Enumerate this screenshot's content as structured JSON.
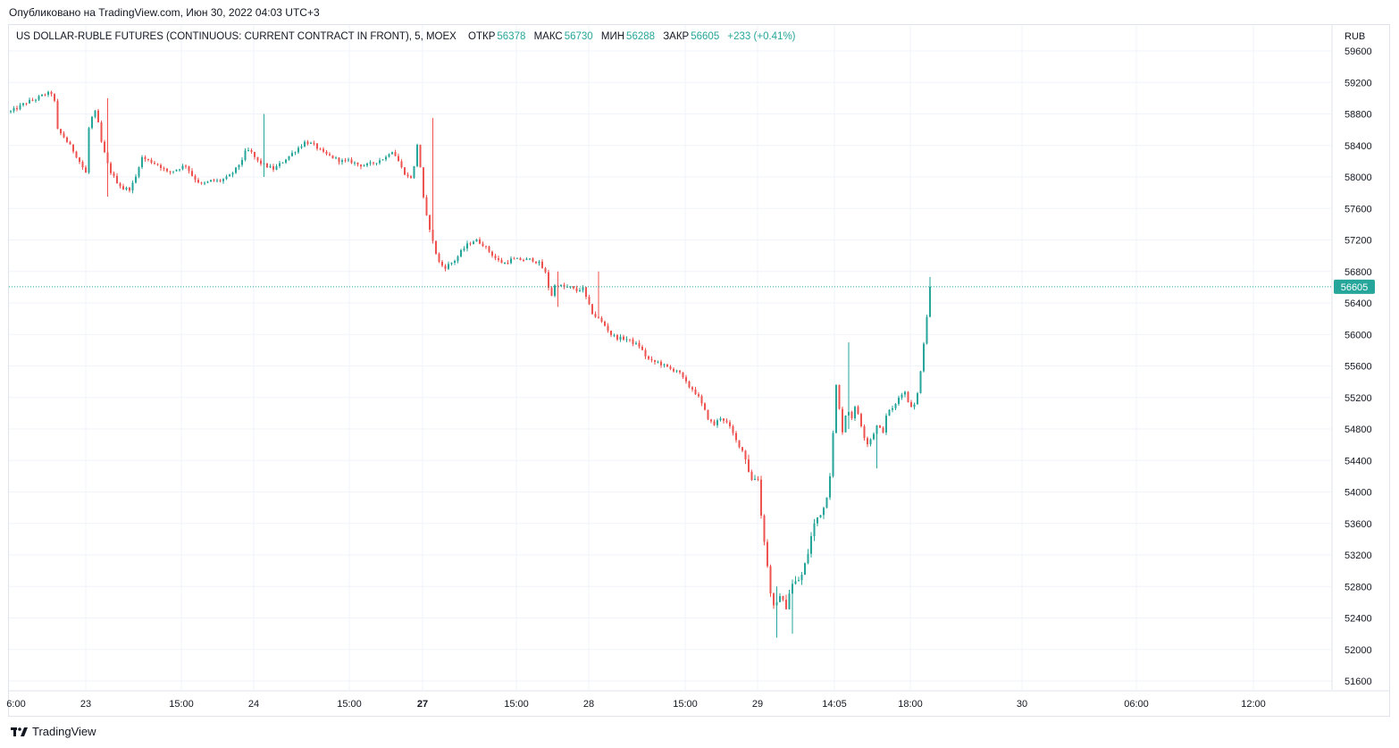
{
  "header": {
    "published": "Опубликовано на TradingView.com, Июн 30, 2022 04:03 UTC+3"
  },
  "legend": {
    "symbol": "US DOLLAR-RUBLE FUTURES (CONTINUOUS: CURRENT CONTRACT IN FRONT), 5, MOEX",
    "open_label": "ОТКР",
    "open": "56378",
    "high_label": "МАКС",
    "high": "56730",
    "low_label": "МИН",
    "low": "56288",
    "close_label": "ЗАКР",
    "close": "56605",
    "change": "+233 (+0.41%)"
  },
  "footer": {
    "brand": "TradingView"
  },
  "colors": {
    "up": "#26a69a",
    "down": "#ef5350",
    "grid": "#f0f3fa",
    "text": "#131722"
  },
  "chart_data": {
    "type": "candlestick",
    "currency": "RUB",
    "ylim": [
      51400,
      59700
    ],
    "y_ticks": [
      59600,
      59200,
      58800,
      58400,
      58000,
      57600,
      57200,
      56800,
      56400,
      56000,
      55600,
      55200,
      54800,
      54400,
      54000,
      53600,
      53200,
      52800,
      52400,
      52000,
      51600
    ],
    "x_ticks": [
      {
        "label": "6:00",
        "bold": false
      },
      {
        "label": "23",
        "bold": false
      },
      {
        "label": "15:00",
        "bold": false
      },
      {
        "label": "24",
        "bold": false
      },
      {
        "label": "15:00",
        "bold": false
      },
      {
        "label": "27",
        "bold": true
      },
      {
        "label": "15:00",
        "bold": false
      },
      {
        "label": "28",
        "bold": false
      },
      {
        "label": "15:00",
        "bold": false
      },
      {
        "label": "29",
        "bold": false
      },
      {
        "label": "14:05",
        "bold": false
      },
      {
        "label": "18:00",
        "bold": false
      },
      {
        "label": "30",
        "bold": false
      },
      {
        "label": "06:00",
        "bold": false
      },
      {
        "label": "12:00",
        "bold": false
      }
    ],
    "last_price": 56605,
    "path": [
      [
        0,
        58830
      ],
      [
        8,
        58880
      ],
      [
        18,
        58950
      ],
      [
        28,
        58990
      ],
      [
        38,
        59050
      ],
      [
        48,
        59070
      ],
      [
        52,
        58600
      ],
      [
        60,
        58500
      ],
      [
        72,
        58300
      ],
      [
        84,
        58050
      ],
      [
        88,
        58700
      ],
      [
        96,
        58850
      ],
      [
        100,
        58500
      ],
      [
        110,
        58100
      ],
      [
        118,
        57950
      ],
      [
        126,
        57850
      ],
      [
        134,
        57850
      ],
      [
        140,
        58000
      ],
      [
        146,
        58250
      ],
      [
        156,
        58200
      ],
      [
        166,
        58150
      ],
      [
        176,
        58050
      ],
      [
        186,
        58100
      ],
      [
        196,
        58150
      ],
      [
        204,
        58000
      ],
      [
        214,
        57900
      ],
      [
        224,
        57950
      ],
      [
        234,
        57950
      ],
      [
        244,
        58000
      ],
      [
        252,
        58100
      ],
      [
        258,
        58200
      ],
      [
        264,
        58350
      ],
      [
        270,
        58300
      ],
      [
        276,
        58200
      ],
      [
        284,
        58150
      ],
      [
        294,
        58100
      ],
      [
        300,
        58150
      ],
      [
        310,
        58250
      ],
      [
        320,
        58350
      ],
      [
        330,
        58450
      ],
      [
        340,
        58400
      ],
      [
        350,
        58300
      ],
      [
        360,
        58250
      ],
      [
        370,
        58200
      ],
      [
        380,
        58200
      ],
      [
        390,
        58150
      ],
      [
        400,
        58150
      ],
      [
        410,
        58200
      ],
      [
        420,
        58250
      ],
      [
        426,
        58350
      ],
      [
        432,
        58250
      ],
      [
        438,
        58100
      ],
      [
        444,
        58000
      ],
      [
        450,
        58000
      ],
      [
        456,
        58500
      ],
      [
        460,
        57900
      ],
      [
        464,
        57550
      ],
      [
        468,
        57400
      ],
      [
        474,
        57100
      ],
      [
        480,
        56900
      ],
      [
        486,
        56850
      ],
      [
        492,
        56900
      ],
      [
        498,
        56950
      ],
      [
        504,
        57050
      ],
      [
        512,
        57150
      ],
      [
        520,
        57200
      ],
      [
        528,
        57150
      ],
      [
        536,
        57050
      ],
      [
        544,
        56950
      ],
      [
        552,
        56900
      ],
      [
        560,
        56950
      ],
      [
        568,
        56950
      ],
      [
        576,
        56950
      ],
      [
        584,
        56950
      ],
      [
        592,
        56900
      ],
      [
        600,
        56750
      ],
      [
        604,
        56450
      ],
      [
        610,
        56650
      ],
      [
        618,
        56600
      ],
      [
        626,
        56600
      ],
      [
        634,
        56550
      ],
      [
        640,
        56600
      ],
      [
        646,
        56400
      ],
      [
        652,
        56250
      ],
      [
        658,
        56200
      ],
      [
        666,
        56100
      ],
      [
        672,
        56000
      ],
      [
        680,
        55950
      ],
      [
        688,
        55950
      ],
      [
        696,
        55900
      ],
      [
        704,
        55850
      ],
      [
        712,
        55700
      ],
      [
        718,
        55650
      ],
      [
        724,
        55650
      ],
      [
        732,
        55600
      ],
      [
        740,
        55550
      ],
      [
        746,
        55550
      ],
      [
        752,
        55450
      ],
      [
        758,
        55350
      ],
      [
        764,
        55300
      ],
      [
        770,
        55200
      ],
      [
        776,
        55050
      ],
      [
        782,
        54900
      ],
      [
        788,
        54850
      ],
      [
        794,
        54950
      ],
      [
        800,
        54900
      ],
      [
        806,
        54800
      ],
      [
        812,
        54650
      ],
      [
        818,
        54550
      ],
      [
        824,
        54400
      ],
      [
        828,
        54150
      ],
      [
        832,
        54150
      ],
      [
        836,
        54250
      ],
      [
        840,
        53700
      ],
      [
        844,
        53350
      ],
      [
        848,
        52950
      ],
      [
        852,
        52600
      ],
      [
        856,
        52450
      ],
      [
        860,
        52750
      ],
      [
        864,
        52600
      ],
      [
        868,
        52550
      ],
      [
        872,
        52750
      ],
      [
        876,
        52850
      ],
      [
        880,
        52850
      ],
      [
        886,
        52950
      ],
      [
        892,
        53200
      ],
      [
        898,
        53550
      ],
      [
        904,
        53700
      ],
      [
        910,
        53800
      ],
      [
        916,
        54100
      ],
      [
        920,
        54650
      ],
      [
        924,
        55350
      ],
      [
        928,
        55000
      ],
      [
        932,
        54700
      ],
      [
        936,
        55150
      ],
      [
        940,
        54900
      ],
      [
        946,
        55100
      ],
      [
        952,
        54850
      ],
      [
        958,
        54600
      ],
      [
        964,
        54700
      ],
      [
        970,
        54850
      ],
      [
        976,
        54750
      ],
      [
        982,
        55050
      ],
      [
        988,
        55050
      ],
      [
        994,
        55200
      ],
      [
        1000,
        55300
      ],
      [
        1006,
        55100
      ],
      [
        1012,
        55100
      ],
      [
        1016,
        55300
      ],
      [
        1020,
        55700
      ],
      [
        1024,
        56100
      ],
      [
        1028,
        56450
      ],
      [
        1031,
        56605
      ]
    ],
    "spikes": [
      [
        110,
        57750,
        59000
      ],
      [
        283,
        58000,
        58800
      ],
      [
        473,
        57600,
        58750
      ],
      [
        614,
        56350,
        56800
      ],
      [
        658,
        56300,
        56800
      ],
      [
        856,
        52150,
        52800
      ],
      [
        876,
        52200,
        52600
      ],
      [
        938,
        54800,
        55900
      ],
      [
        970,
        54300,
        54800
      ]
    ]
  }
}
